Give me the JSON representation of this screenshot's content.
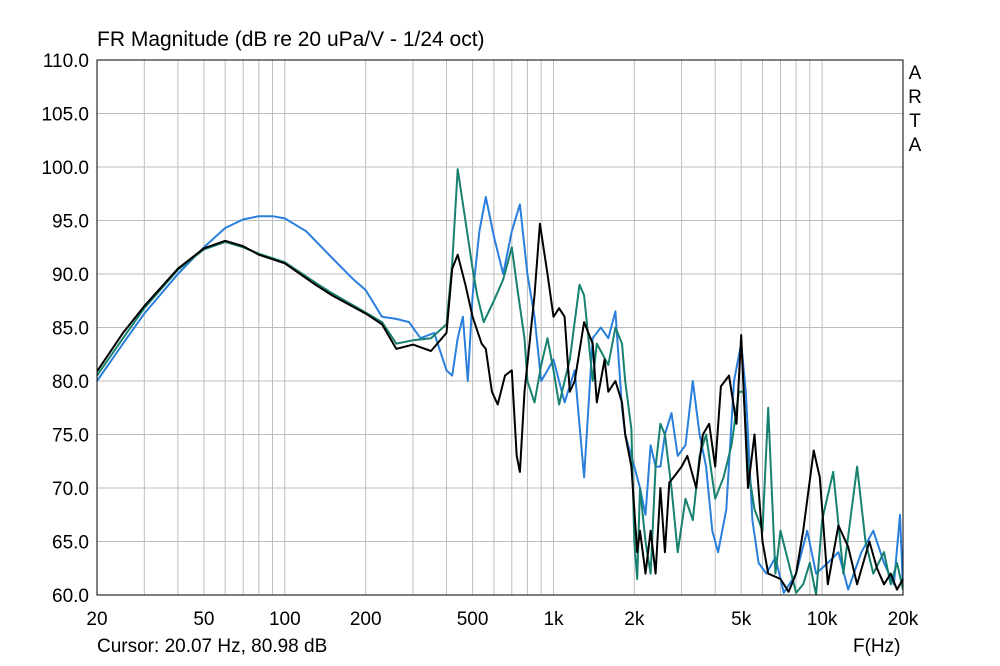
{
  "header": {
    "title": "FR Magnitude (dB re 20 uPa/V - 1/24 oct)"
  },
  "footer": {
    "cursor": "Cursor: 20.07 Hz, 80.98 dB",
    "xunit": "F(Hz)"
  },
  "watermark": "ARTA",
  "colors": {
    "black_series": "#000000",
    "teal_series": "#17806e",
    "blue_series": "#2a7fdc",
    "grid": "#bdbdbd",
    "frame": "#000000"
  },
  "chart_data": {
    "type": "line",
    "title": "FR Magnitude (dB re 20 uPa/V - 1/24 oct)",
    "xlabel": "F(Hz)",
    "ylabel": "",
    "xscale": "log",
    "xlim": [
      20,
      20000
    ],
    "ylim": [
      60,
      110
    ],
    "grid": true,
    "legend": "none",
    "x_tick_labels": [
      "20",
      "50",
      "100",
      "200",
      "500",
      "1k",
      "2k",
      "5k",
      "10k",
      "20k"
    ],
    "x_tick_values": [
      20,
      50,
      100,
      200,
      500,
      1000,
      2000,
      5000,
      10000,
      20000
    ],
    "y_tick_labels": [
      "60.0",
      "65.0",
      "70.0",
      "75.0",
      "80.0",
      "85.0",
      "90.0",
      "95.0",
      "100.0",
      "105.0",
      "110.0"
    ],
    "y_tick_values": [
      60,
      65,
      70,
      75,
      80,
      85,
      90,
      95,
      100,
      105,
      110
    ],
    "series": [
      {
        "color": "#000000",
        "points": [
          [
            20,
            80.9
          ],
          [
            25,
            84.5
          ],
          [
            30,
            87.0
          ],
          [
            40,
            90.5
          ],
          [
            50,
            92.4
          ],
          [
            60,
            93.1
          ],
          [
            70,
            92.6
          ],
          [
            80,
            91.8
          ],
          [
            100,
            91.0
          ],
          [
            130,
            89.0
          ],
          [
            150,
            88.0
          ],
          [
            200,
            86.3
          ],
          [
            230,
            85.3
          ],
          [
            260,
            83.0
          ],
          [
            300,
            83.4
          ],
          [
            350,
            82.8
          ],
          [
            400,
            84.5
          ],
          [
            420,
            90.5
          ],
          [
            440,
            91.8
          ],
          [
            470,
            89.0
          ],
          [
            500,
            86.0
          ],
          [
            540,
            83.5
          ],
          [
            560,
            83.0
          ],
          [
            590,
            79.0
          ],
          [
            620,
            77.8
          ],
          [
            660,
            80.5
          ],
          [
            700,
            81.0
          ],
          [
            730,
            73.0
          ],
          [
            750,
            71.5
          ],
          [
            780,
            79.0
          ],
          [
            850,
            88.0
          ],
          [
            890,
            94.7
          ],
          [
            950,
            90.0
          ],
          [
            1000,
            86.0
          ],
          [
            1050,
            86.8
          ],
          [
            1100,
            86.0
          ],
          [
            1150,
            79.0
          ],
          [
            1200,
            80.0
          ],
          [
            1300,
            85.5
          ],
          [
            1400,
            83.5
          ],
          [
            1450,
            78.0
          ],
          [
            1550,
            82.0
          ],
          [
            1600,
            79.0
          ],
          [
            1700,
            80.0
          ],
          [
            1800,
            78.0
          ],
          [
            1850,
            75.0
          ],
          [
            1950,
            72.0
          ],
          [
            2050,
            64.0
          ],
          [
            2100,
            66.0
          ],
          [
            2200,
            62.0
          ],
          [
            2300,
            66.0
          ],
          [
            2400,
            62.0
          ],
          [
            2500,
            70.0
          ],
          [
            2600,
            64.0
          ],
          [
            2700,
            70.5
          ],
          [
            2800,
            71.0
          ],
          [
            3000,
            72.0
          ],
          [
            3150,
            73.0
          ],
          [
            3400,
            70.0
          ],
          [
            3600,
            75.0
          ],
          [
            3800,
            76.0
          ],
          [
            4000,
            72.0
          ],
          [
            4200,
            79.5
          ],
          [
            4500,
            80.5
          ],
          [
            4800,
            76.0
          ],
          [
            5000,
            84.3
          ],
          [
            5300,
            70.0
          ],
          [
            5600,
            75.0
          ],
          [
            6000,
            65.0
          ],
          [
            6300,
            62.0
          ],
          [
            7000,
            61.5
          ],
          [
            7500,
            60.3
          ],
          [
            8000,
            62.0
          ],
          [
            8500,
            66.0
          ],
          [
            9300,
            73.5
          ],
          [
            9800,
            71.0
          ],
          [
            10500,
            61.0
          ],
          [
            11500,
            66.5
          ],
          [
            12500,
            64.5
          ],
          [
            13500,
            61.0
          ],
          [
            15000,
            65.0
          ],
          [
            16000,
            62.5
          ],
          [
            17000,
            61.0
          ],
          [
            18000,
            62.0
          ],
          [
            19000,
            60.5
          ],
          [
            20000,
            61.5
          ]
        ]
      },
      {
        "color": "#17806e",
        "points": [
          [
            20,
            80.5
          ],
          [
            25,
            84.0
          ],
          [
            30,
            86.8
          ],
          [
            40,
            90.4
          ],
          [
            50,
            92.3
          ],
          [
            60,
            93.0
          ],
          [
            70,
            92.5
          ],
          [
            80,
            91.9
          ],
          [
            100,
            91.1
          ],
          [
            130,
            89.2
          ],
          [
            150,
            88.2
          ],
          [
            200,
            86.4
          ],
          [
            230,
            85.5
          ],
          [
            260,
            83.5
          ],
          [
            300,
            83.8
          ],
          [
            350,
            84.0
          ],
          [
            400,
            85.3
          ],
          [
            420,
            91.0
          ],
          [
            440,
            99.8
          ],
          [
            470,
            95.0
          ],
          [
            500,
            90.5
          ],
          [
            520,
            88.0
          ],
          [
            550,
            85.5
          ],
          [
            600,
            87.5
          ],
          [
            650,
            89.5
          ],
          [
            700,
            92.5
          ],
          [
            740,
            88.0
          ],
          [
            780,
            84.0
          ],
          [
            800,
            80.0
          ],
          [
            850,
            78.0
          ],
          [
            900,
            81.5
          ],
          [
            950,
            84.0
          ],
          [
            1000,
            81.0
          ],
          [
            1050,
            77.8
          ],
          [
            1100,
            80.0
          ],
          [
            1150,
            82.0
          ],
          [
            1250,
            89.0
          ],
          [
            1300,
            88.0
          ],
          [
            1400,
            80.0
          ],
          [
            1450,
            83.5
          ],
          [
            1600,
            81.5
          ],
          [
            1700,
            85.0
          ],
          [
            1800,
            83.5
          ],
          [
            1850,
            80.0
          ],
          [
            1950,
            75.5
          ],
          [
            2000,
            65.0
          ],
          [
            2050,
            61.5
          ],
          [
            2100,
            70.0
          ],
          [
            2200,
            65.0
          ],
          [
            2300,
            62.0
          ],
          [
            2400,
            72.0
          ],
          [
            2500,
            76.0
          ],
          [
            2600,
            75.0
          ],
          [
            2750,
            70.0
          ],
          [
            2900,
            64.0
          ],
          [
            3100,
            69.0
          ],
          [
            3300,
            67.0
          ],
          [
            3500,
            73.0
          ],
          [
            3700,
            75.0
          ],
          [
            4000,
            69.0
          ],
          [
            4300,
            71.0
          ],
          [
            4600,
            74.0
          ],
          [
            4900,
            79.0
          ],
          [
            5100,
            79.0
          ],
          [
            5300,
            72.0
          ],
          [
            5600,
            68.0
          ],
          [
            6000,
            66.0
          ],
          [
            6300,
            77.5
          ],
          [
            6700,
            62.0
          ],
          [
            7000,
            66.0
          ],
          [
            7500,
            63.0
          ],
          [
            8000,
            60.2
          ],
          [
            8500,
            61.0
          ],
          [
            9000,
            63.0
          ],
          [
            9500,
            60.0
          ],
          [
            10000,
            67.0
          ],
          [
            11000,
            71.5
          ],
          [
            12000,
            62.0
          ],
          [
            13500,
            72.0
          ],
          [
            14500,
            65.0
          ],
          [
            15500,
            62.0
          ],
          [
            17000,
            64.0
          ],
          [
            18000,
            61.0
          ],
          [
            19000,
            63.0
          ],
          [
            20000,
            60.5
          ]
        ]
      },
      {
        "color": "#2a7fdc",
        "points": [
          [
            20,
            80.0
          ],
          [
            25,
            83.5
          ],
          [
            30,
            86.3
          ],
          [
            40,
            90.0
          ],
          [
            50,
            92.5
          ],
          [
            60,
            94.3
          ],
          [
            70,
            95.1
          ],
          [
            80,
            95.4
          ],
          [
            90,
            95.4
          ],
          [
            100,
            95.2
          ],
          [
            120,
            94.0
          ],
          [
            150,
            91.5
          ],
          [
            180,
            89.5
          ],
          [
            200,
            88.5
          ],
          [
            230,
            86.0
          ],
          [
            260,
            85.8
          ],
          [
            290,
            85.5
          ],
          [
            320,
            84.0
          ],
          [
            360,
            84.5
          ],
          [
            400,
            81.0
          ],
          [
            420,
            80.5
          ],
          [
            440,
            84.0
          ],
          [
            460,
            86.0
          ],
          [
            480,
            80.0
          ],
          [
            500,
            88.0
          ],
          [
            530,
            94.0
          ],
          [
            560,
            97.2
          ],
          [
            600,
            93.5
          ],
          [
            650,
            90.0
          ],
          [
            700,
            94.0
          ],
          [
            750,
            96.5
          ],
          [
            800,
            90.0
          ],
          [
            850,
            86.0
          ],
          [
            900,
            80.0
          ],
          [
            950,
            81.0
          ],
          [
            1000,
            82.0
          ],
          [
            1100,
            78.0
          ],
          [
            1200,
            81.0
          ],
          [
            1300,
            71.0
          ],
          [
            1400,
            84.0
          ],
          [
            1500,
            85.0
          ],
          [
            1600,
            84.0
          ],
          [
            1700,
            86.5
          ],
          [
            1800,
            77.5
          ],
          [
            1850,
            75.0
          ],
          [
            2000,
            72.0
          ],
          [
            2100,
            70.0
          ],
          [
            2200,
            67.5
          ],
          [
            2300,
            74.0
          ],
          [
            2400,
            72.0
          ],
          [
            2500,
            72.0
          ],
          [
            2600,
            75.0
          ],
          [
            2750,
            77.0
          ],
          [
            2900,
            73.0
          ],
          [
            3100,
            74.0
          ],
          [
            3300,
            80.0
          ],
          [
            3500,
            75.0
          ],
          [
            3700,
            72.0
          ],
          [
            3900,
            66.0
          ],
          [
            4100,
            64.0
          ],
          [
            4400,
            68.0
          ],
          [
            4700,
            80.0
          ],
          [
            5000,
            83.5
          ],
          [
            5200,
            79.0
          ],
          [
            5500,
            67.0
          ],
          [
            5800,
            63.0
          ],
          [
            6200,
            62.0
          ],
          [
            6700,
            63.5
          ],
          [
            7200,
            60.2
          ],
          [
            8000,
            62.0
          ],
          [
            8800,
            66.0
          ],
          [
            9500,
            62.0
          ],
          [
            10500,
            63.0
          ],
          [
            11500,
            64.0
          ],
          [
            12500,
            60.5
          ],
          [
            14000,
            64.0
          ],
          [
            15500,
            66.0
          ],
          [
            17000,
            63.0
          ],
          [
            18500,
            61.0
          ],
          [
            19500,
            67.5
          ],
          [
            20000,
            60.5
          ]
        ]
      }
    ]
  }
}
